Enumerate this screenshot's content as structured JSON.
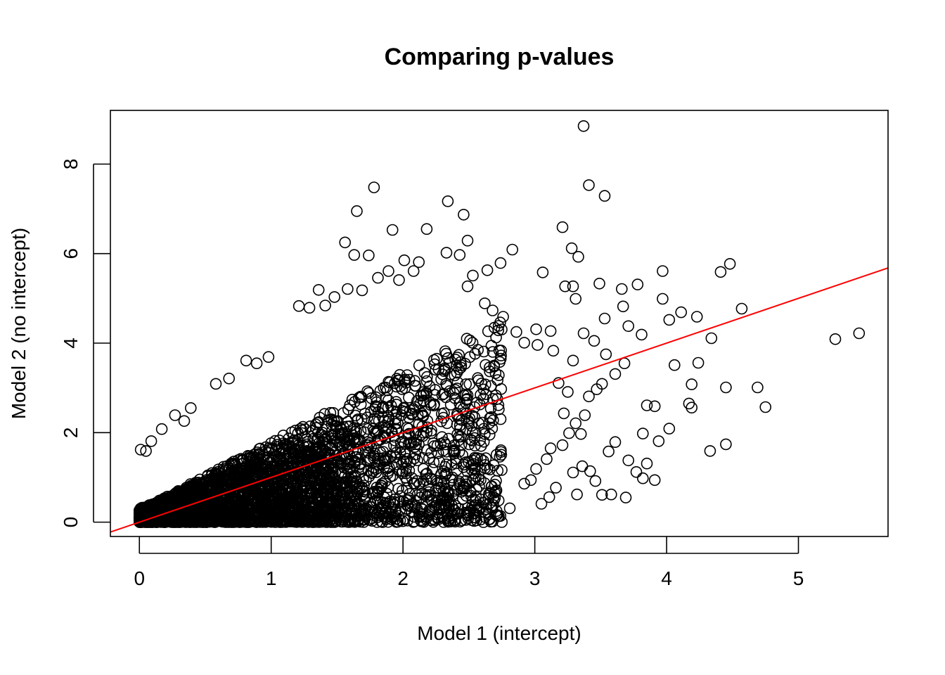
{
  "chart_data": {
    "type": "scatter",
    "title": "Comparing p-values",
    "xlabel": "Model 1 (intercept)",
    "ylabel": "Model 2 (no intercept)",
    "xlim": [
      -0.22,
      5.68
    ],
    "ylim": [
      -0.32,
      9.2
    ],
    "xticks": [
      0,
      1,
      2,
      3,
      4,
      5
    ],
    "yticks": [
      0,
      2,
      4,
      6,
      8
    ],
    "grid": false,
    "marker": "open-circle",
    "point_color": "#000000",
    "reference_line": {
      "slope": 1,
      "intercept": 0,
      "color": "#ff0000"
    },
    "points_note": "dense cloud of many points; representative visible outliers listed",
    "points": [
      [
        3.37,
        8.85
      ],
      [
        1.78,
        7.48
      ],
      [
        3.41,
        7.53
      ],
      [
        3.53,
        7.29
      ],
      [
        2.34,
        7.17
      ],
      [
        1.65,
        6.95
      ],
      [
        2.46,
        6.87
      ],
      [
        1.92,
        6.53
      ],
      [
        2.18,
        6.55
      ],
      [
        3.21,
        6.59
      ],
      [
        1.56,
        6.25
      ],
      [
        2.49,
        6.29
      ],
      [
        1.63,
        5.97
      ],
      [
        1.74,
        5.96
      ],
      [
        3.28,
        6.12
      ],
      [
        2.83,
        6.09
      ],
      [
        3.33,
        5.93
      ],
      [
        1.89,
        5.61
      ],
      [
        2.12,
        5.81
      ],
      [
        2.01,
        5.85
      ],
      [
        3.06,
        5.58
      ],
      [
        2.74,
        5.79
      ],
      [
        3.97,
        5.61
      ],
      [
        4.41,
        5.59
      ],
      [
        4.48,
        5.77
      ],
      [
        3.49,
        5.33
      ],
      [
        3.23,
        5.27
      ],
      [
        3.29,
        5.27
      ],
      [
        3.78,
        5.31
      ],
      [
        2.64,
        5.63
      ],
      [
        2.53,
        5.51
      ],
      [
        3.66,
        5.21
      ],
      [
        3.31,
        4.99
      ],
      [
        3.97,
        4.99
      ],
      [
        4.57,
        4.77
      ],
      [
        4.11,
        4.69
      ],
      [
        4.23,
        4.59
      ],
      [
        4.02,
        4.52
      ],
      [
        3.67,
        4.82
      ],
      [
        3.53,
        4.55
      ],
      [
        3.71,
        4.38
      ],
      [
        3.37,
        4.22
      ],
      [
        3.81,
        4.19
      ],
      [
        4.34,
        4.11
      ],
      [
        3.45,
        4.05
      ],
      [
        5.28,
        4.09
      ],
      [
        5.46,
        4.22
      ],
      [
        1.21,
        4.83
      ],
      [
        1.29,
        4.79
      ],
      [
        1.41,
        4.84
      ],
      [
        0.81,
        3.61
      ],
      [
        0.89,
        3.55
      ],
      [
        0.98,
        3.69
      ],
      [
        0.68,
        3.21
      ],
      [
        0.58,
        3.09
      ],
      [
        0.39,
        2.55
      ],
      [
        0.27,
        2.39
      ],
      [
        0.34,
        2.26
      ],
      [
        0.17,
        2.08
      ],
      [
        0.09,
        1.81
      ],
      [
        0.05,
        1.59
      ],
      [
        0.01,
        1.62
      ],
      [
        3.54,
        3.75
      ],
      [
        3.68,
        3.55
      ],
      [
        3.61,
        3.31
      ],
      [
        3.51,
        3.09
      ],
      [
        3.47,
        2.97
      ],
      [
        3.41,
        2.81
      ],
      [
        3.85,
        2.61
      ],
      [
        3.91,
        2.59
      ],
      [
        4.06,
        3.51
      ],
      [
        4.24,
        3.56
      ],
      [
        4.19,
        3.08
      ],
      [
        4.17,
        2.65
      ],
      [
        4.19,
        2.56
      ],
      [
        4.45,
        3.01
      ],
      [
        4.69,
        3.01
      ],
      [
        4.75,
        2.57
      ],
      [
        4.02,
        2.09
      ],
      [
        4.33,
        1.59
      ],
      [
        4.45,
        1.74
      ],
      [
        3.82,
        1.98
      ],
      [
        3.61,
        1.79
      ],
      [
        3.56,
        1.58
      ],
      [
        3.71,
        1.38
      ],
      [
        3.85,
        1.31
      ],
      [
        3.94,
        1.81
      ],
      [
        3.77,
        1.12
      ],
      [
        3.82,
        0.98
      ],
      [
        3.91,
        0.94
      ],
      [
        3.46,
        0.92
      ],
      [
        3.51,
        0.61
      ],
      [
        3.58,
        0.62
      ],
      [
        3.69,
        0.55
      ],
      [
        3.32,
        0.62
      ],
      [
        3.29,
        1.11
      ],
      [
        3.16,
        0.77
      ],
      [
        3.11,
        0.56
      ],
      [
        3.05,
        0.41
      ],
      [
        2.81,
        0.31
      ],
      [
        2.71,
        0.25
      ],
      [
        2.58,
        0.31
      ],
      [
        2.47,
        0.21
      ],
      [
        2.38,
        0.15
      ],
      [
        2.26,
        0.09
      ],
      [
        3.36,
        1.25
      ],
      [
        3.42,
        1.14
      ],
      [
        2.97,
        0.94
      ],
      [
        2.92,
        0.86
      ],
      [
        3.01,
        1.19
      ],
      [
        3.09,
        1.41
      ],
      [
        3.12,
        1.65
      ],
      [
        3.21,
        1.72
      ],
      [
        3.26,
        1.99
      ],
      [
        3.35,
        1.97
      ],
      [
        3.38,
        2.39
      ],
      [
        3.31,
        2.21
      ],
      [
        3.22,
        2.43
      ],
      [
        3.25,
        2.91
      ],
      [
        3.18,
        3.11
      ],
      [
        3.29,
        3.61
      ],
      [
        3.14,
        3.83
      ],
      [
        3.02,
        3.96
      ],
      [
        3.12,
        4.27
      ],
      [
        3.01,
        4.31
      ],
      [
        2.92,
        4.01
      ],
      [
        2.86,
        4.25
      ],
      [
        2.76,
        4.59
      ],
      [
        2.68,
        4.73
      ],
      [
        2.62,
        4.89
      ],
      [
        2.49,
        5.27
      ],
      [
        2.43,
        5.97
      ],
      [
        2.33,
        6.02
      ],
      [
        2.08,
        5.61
      ],
      [
        1.97,
        5.41
      ],
      [
        1.81,
        5.46
      ],
      [
        1.69,
        5.18
      ],
      [
        1.58,
        5.21
      ],
      [
        1.48,
        5.03
      ],
      [
        1.36,
        5.19
      ]
    ]
  }
}
